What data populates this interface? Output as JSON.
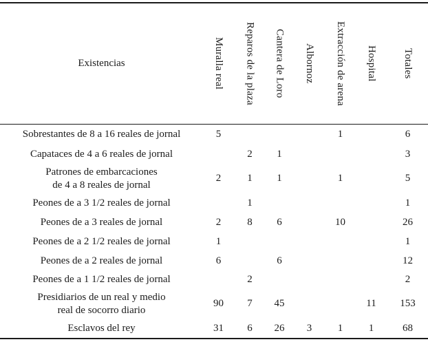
{
  "table": {
    "corner_header": "Existencias",
    "columns": [
      "Muralla real",
      "Reparos de la plaza",
      "Cantera de Loro",
      "Albornoz",
      "Extracción de arena",
      "Hospital",
      "Totales"
    ],
    "rows": [
      {
        "label": "Sobrestantes de 8 a 16 reales de jornal",
        "label2": "",
        "values": [
          "5",
          "",
          "",
          "",
          "1",
          "",
          "6"
        ]
      },
      {
        "label": "Capataces de 4 a 6 reales de jornal",
        "label2": "",
        "values": [
          "",
          "2",
          "1",
          "",
          "",
          "",
          "3"
        ]
      },
      {
        "label": "Patrones de embarcaciones",
        "label2": "de 4 a 8 reales de jornal",
        "values": [
          "2",
          "1",
          "1",
          "",
          "1",
          "",
          "5"
        ]
      },
      {
        "label": "Peones de a 3 1/2 reales de jornal",
        "label2": "",
        "values": [
          "",
          "1",
          "",
          "",
          "",
          "",
          "1"
        ]
      },
      {
        "label": "Peones de a 3 reales de jornal",
        "label2": "",
        "values": [
          "2",
          "8",
          "6",
          "",
          "10",
          "",
          "26"
        ]
      },
      {
        "label": "Peones de a 2 1/2 reales de jornal",
        "label2": "",
        "values": [
          "1",
          "",
          "",
          "",
          "",
          "",
          "1"
        ]
      },
      {
        "label": "Peones de a 2 reales de jornal",
        "label2": "",
        "values": [
          "6",
          "",
          "6",
          "",
          "",
          "",
          "12"
        ]
      },
      {
        "label": "Peones de a 1 1/2 reales de jornal",
        "label2": "",
        "values": [
          "",
          "2",
          "",
          "",
          "",
          "",
          "2"
        ]
      },
      {
        "label": "Presidiarios de un real y medio",
        "label2": "real de socorro diario",
        "values": [
          "90",
          "7",
          "45",
          "",
          "",
          "11",
          "153"
        ]
      },
      {
        "label": "Esclavos del rey",
        "label2": "",
        "values": [
          "31",
          "6",
          "26",
          "3",
          "1",
          "1",
          "68"
        ]
      }
    ]
  }
}
